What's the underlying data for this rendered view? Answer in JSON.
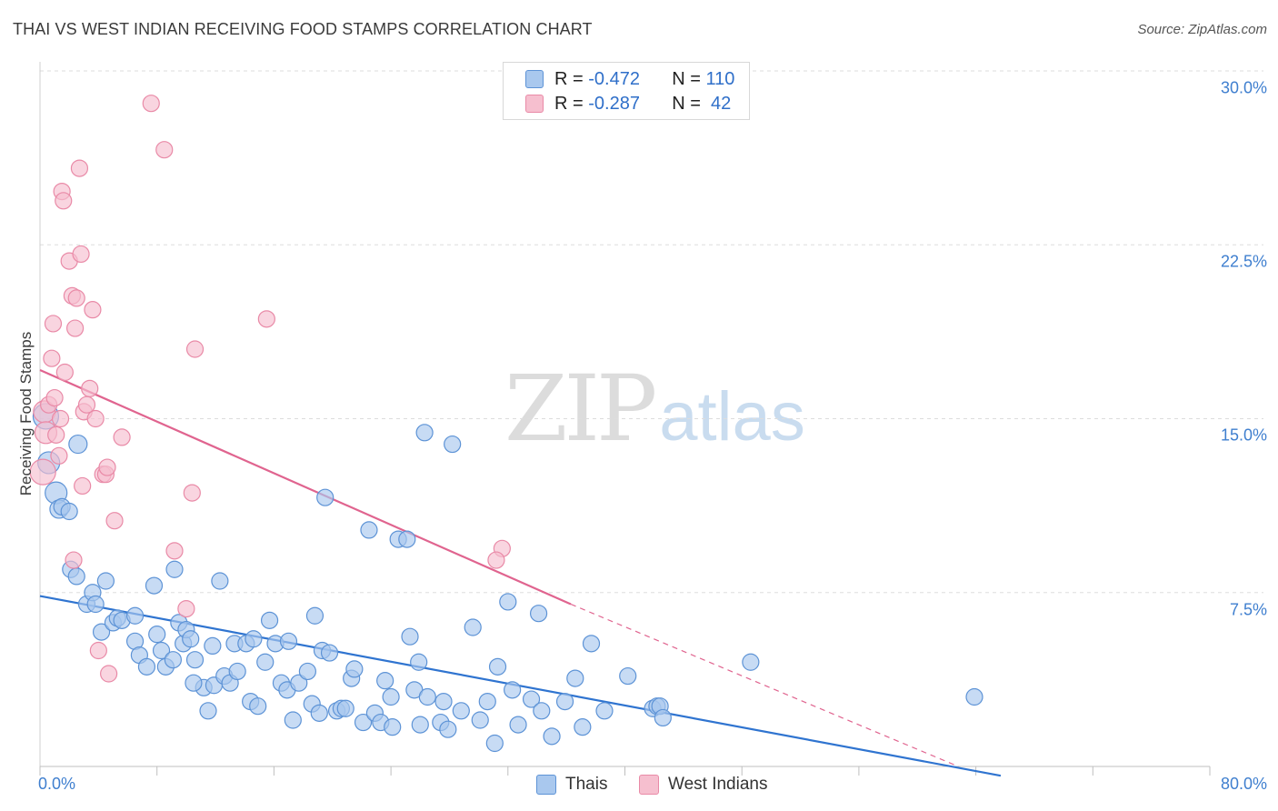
{
  "header": {
    "title": "THAI VS WEST INDIAN RECEIVING FOOD STAMPS CORRELATION CHART",
    "source": "Source: ZipAtlas.com"
  },
  "watermark": {
    "zip": "ZIP",
    "atlas": "atlas"
  },
  "colors": {
    "blue_fill": "#a9c8ee",
    "blue_stroke": "#5d93d6",
    "blue_line": "#2f74d0",
    "pink_fill": "#f6bfcf",
    "pink_stroke": "#e98aa7",
    "pink_line": "#e0648f",
    "axis_text": "#3f7fcf",
    "grid": "#dddddd"
  },
  "legend": {
    "series": [
      {
        "name": "Thais",
        "r_label": "R =",
        "r_value": "-0.472",
        "n_label": "N =",
        "n_value": "110"
      },
      {
        "name": "West Indians",
        "r_label": "R =",
        "r_value": "-0.287",
        "n_label": "N =",
        "n_value": " 42"
      }
    ]
  },
  "chart_data": {
    "type": "scatter",
    "title": "THAI VS WEST INDIAN RECEIVING FOOD STAMPS CORRELATION CHART",
    "xlabel": "",
    "ylabel": "Receiving Food Stamps",
    "xlim": [
      0,
      80
    ],
    "ylim": [
      0,
      30
    ],
    "x_tick_labels": [
      "0.0%",
      "80.0%"
    ],
    "y_ticks": [
      7.5,
      15.0,
      22.5,
      30.0
    ],
    "y_tick_labels": [
      "7.5%",
      "15.0%",
      "22.5%",
      "30.0%"
    ],
    "grid": true,
    "series": [
      {
        "name": "Thais",
        "trend": {
          "x": [
            0,
            65.7
          ],
          "y": [
            7.35,
            -0.4
          ]
        },
        "points": [
          [
            0.4,
            15.1
          ],
          [
            0.6,
            13.1
          ],
          [
            1.1,
            11.8
          ],
          [
            1.3,
            11.1
          ],
          [
            1.5,
            11.2
          ],
          [
            2.0,
            11.0
          ],
          [
            2.6,
            13.9
          ],
          [
            2.1,
            8.5
          ],
          [
            2.5,
            8.2
          ],
          [
            3.2,
            7.0
          ],
          [
            3.6,
            7.5
          ],
          [
            3.8,
            7.0
          ],
          [
            4.5,
            8.0
          ],
          [
            4.2,
            5.8
          ],
          [
            5.0,
            6.2
          ],
          [
            5.3,
            6.4
          ],
          [
            5.6,
            6.3
          ],
          [
            6.5,
            5.4
          ],
          [
            6.8,
            4.8
          ],
          [
            6.5,
            6.5
          ],
          [
            7.3,
            4.3
          ],
          [
            7.8,
            7.8
          ],
          [
            8.0,
            5.7
          ],
          [
            8.3,
            5.0
          ],
          [
            8.6,
            4.3
          ],
          [
            9.1,
            4.6
          ],
          [
            9.2,
            8.5
          ],
          [
            9.5,
            6.2
          ],
          [
            9.8,
            5.3
          ],
          [
            10.0,
            5.9
          ],
          [
            10.3,
            5.5
          ],
          [
            10.6,
            4.6
          ],
          [
            11.2,
            3.4
          ],
          [
            11.5,
            2.4
          ],
          [
            11.8,
            5.2
          ],
          [
            11.9,
            3.5
          ],
          [
            12.3,
            8.0
          ],
          [
            12.6,
            3.9
          ],
          [
            13.0,
            3.6
          ],
          [
            13.3,
            5.3
          ],
          [
            13.5,
            4.1
          ],
          [
            14.1,
            5.3
          ],
          [
            14.4,
            2.8
          ],
          [
            14.6,
            5.5
          ],
          [
            14.9,
            2.6
          ],
          [
            15.4,
            4.5
          ],
          [
            15.7,
            6.3
          ],
          [
            16.1,
            5.3
          ],
          [
            16.5,
            3.6
          ],
          [
            16.9,
            3.3
          ],
          [
            17.0,
            5.4
          ],
          [
            17.3,
            2.0
          ],
          [
            17.7,
            3.6
          ],
          [
            18.3,
            4.1
          ],
          [
            18.6,
            2.7
          ],
          [
            18.8,
            6.5
          ],
          [
            19.1,
            2.3
          ],
          [
            19.3,
            5.0
          ],
          [
            19.5,
            11.6
          ],
          [
            19.8,
            4.9
          ],
          [
            20.3,
            2.4
          ],
          [
            20.6,
            2.5
          ],
          [
            20.9,
            2.5
          ],
          [
            21.3,
            3.8
          ],
          [
            21.5,
            4.2
          ],
          [
            22.1,
            1.9
          ],
          [
            22.5,
            10.2
          ],
          [
            22.9,
            2.3
          ],
          [
            23.3,
            1.9
          ],
          [
            23.6,
            3.7
          ],
          [
            24.0,
            3.0
          ],
          [
            24.5,
            9.8
          ],
          [
            25.1,
            9.8
          ],
          [
            25.3,
            5.6
          ],
          [
            25.6,
            3.3
          ],
          [
            25.9,
            4.5
          ],
          [
            26.3,
            14.4
          ],
          [
            26.5,
            3.0
          ],
          [
            27.4,
            1.9
          ],
          [
            27.6,
            2.8
          ],
          [
            27.9,
            1.6
          ],
          [
            28.2,
            13.9
          ],
          [
            28.8,
            2.4
          ],
          [
            29.6,
            6.0
          ],
          [
            30.1,
            2.0
          ],
          [
            30.6,
            2.8
          ],
          [
            31.1,
            1.0
          ],
          [
            31.3,
            4.3
          ],
          [
            32.0,
            7.1
          ],
          [
            32.3,
            3.3
          ],
          [
            32.7,
            1.8
          ],
          [
            33.6,
            2.9
          ],
          [
            34.1,
            6.6
          ],
          [
            34.3,
            2.4
          ],
          [
            35.0,
            1.3
          ],
          [
            35.9,
            2.8
          ],
          [
            36.6,
            3.8
          ],
          [
            37.1,
            1.7
          ],
          [
            37.7,
            5.3
          ],
          [
            38.6,
            2.4
          ],
          [
            40.2,
            3.9
          ],
          [
            41.9,
            2.5
          ],
          [
            42.2,
            2.6
          ],
          [
            42.4,
            2.6
          ],
          [
            42.6,
            2.1
          ],
          [
            48.6,
            4.5
          ],
          [
            63.9,
            3.0
          ],
          [
            26.0,
            1.8
          ],
          [
            24.1,
            1.7
          ],
          [
            10.5,
            3.6
          ]
        ],
        "sizes": [
          14,
          12,
          12,
          10,
          9,
          9,
          10,
          9,
          9,
          9,
          9,
          9,
          9,
          9,
          9,
          9,
          9,
          9,
          9,
          9,
          9,
          9,
          9,
          9,
          9,
          9,
          9,
          9,
          9,
          9,
          9,
          9,
          9,
          9,
          9,
          9,
          9,
          9,
          9,
          9,
          9,
          9,
          9,
          9,
          9,
          9,
          9,
          9,
          9,
          9,
          9,
          9,
          9,
          9,
          9,
          9,
          9,
          9,
          9,
          9,
          9,
          9,
          9,
          9,
          9,
          9,
          9,
          9,
          9,
          9,
          9,
          9,
          9,
          9,
          9,
          9,
          9,
          9,
          9,
          9,
          9,
          9,
          9,
          9,
          9,
          9,
          9,
          9,
          9,
          9,
          9,
          9,
          9,
          9,
          9,
          9,
          9,
          9,
          9,
          9,
          9,
          9,
          9,
          9,
          9,
          9,
          9,
          9,
          9,
          9
        ]
      },
      {
        "name": "West Indians",
        "trend": {
          "x": [
            0,
            36.3
          ],
          "y": [
            17.1,
            7.0
          ]
        },
        "trend_dashed": {
          "x": [
            36.3,
            62.8
          ],
          "y": [
            7.0,
            0.0
          ]
        },
        "points": [
          [
            0.2,
            12.7
          ],
          [
            0.3,
            15.3
          ],
          [
            0.4,
            14.4
          ],
          [
            0.6,
            15.6
          ],
          [
            0.8,
            17.6
          ],
          [
            0.9,
            19.1
          ],
          [
            1.0,
            15.9
          ],
          [
            1.1,
            14.3
          ],
          [
            1.3,
            13.4
          ],
          [
            1.4,
            15.0
          ],
          [
            1.5,
            24.8
          ],
          [
            1.6,
            24.4
          ],
          [
            1.7,
            17.0
          ],
          [
            2.0,
            21.8
          ],
          [
            2.2,
            20.3
          ],
          [
            2.3,
            8.9
          ],
          [
            2.4,
            18.9
          ],
          [
            2.5,
            20.2
          ],
          [
            2.7,
            25.8
          ],
          [
            2.8,
            22.1
          ],
          [
            2.9,
            12.1
          ],
          [
            3.0,
            15.3
          ],
          [
            3.2,
            15.6
          ],
          [
            3.4,
            16.3
          ],
          [
            3.6,
            19.7
          ],
          [
            3.8,
            15.0
          ],
          [
            4.0,
            5.0
          ],
          [
            4.3,
            12.6
          ],
          [
            4.5,
            12.6
          ],
          [
            4.6,
            12.9
          ],
          [
            4.7,
            4.0
          ],
          [
            5.1,
            10.6
          ],
          [
            5.6,
            14.2
          ],
          [
            7.6,
            28.6
          ],
          [
            8.5,
            26.6
          ],
          [
            9.2,
            9.3
          ],
          [
            10.0,
            6.8
          ],
          [
            10.4,
            11.8
          ],
          [
            10.6,
            18.0
          ],
          [
            15.5,
            19.3
          ],
          [
            31.6,
            9.4
          ],
          [
            31.2,
            8.9
          ]
        ],
        "sizes": [
          14,
          12,
          12,
          9,
          9,
          9,
          9,
          9,
          9,
          9,
          9,
          9,
          9,
          9,
          9,
          9,
          9,
          9,
          9,
          9,
          9,
          9,
          9,
          9,
          9,
          9,
          9,
          9,
          9,
          9,
          9,
          9,
          9,
          9,
          9,
          9,
          9,
          9,
          9,
          9,
          9,
          9
        ]
      }
    ]
  }
}
